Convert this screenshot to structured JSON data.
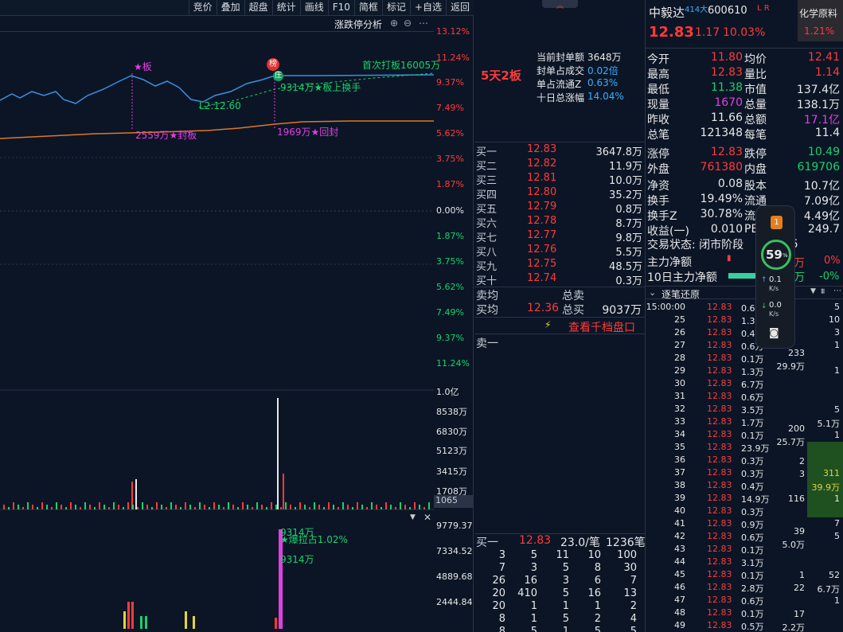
{
  "toolbar": {
    "btns": [
      "竞价",
      "叠加",
      "超盘",
      "统计",
      "画线",
      "F10",
      "简框",
      "标记",
      "+自选",
      "返回"
    ]
  },
  "chart": {
    "title": "涨跌停分析",
    "pct_labels": [
      "13.12%",
      "11.24%",
      "9.37%",
      "7.49%",
      "5.62%",
      "3.75%",
      "1.87%",
      "0.00%",
      "1.87%",
      "3.75%",
      "5.62%",
      "7.49%",
      "9.37%",
      "11.24%"
    ],
    "ann": {
      "ban": "★板",
      "first": "首次打板16005万",
      "seal": "9314万★板上换手",
      "l2": "L2:12.60",
      "fb": "2559万★封板",
      "hf": "1969万★回封",
      "bang": "榜",
      "jin": "庄"
    },
    "vol_labels": [
      "1.0亿",
      "8538万",
      "6830万",
      "5123万",
      "3415万",
      "1708万",
      "1065"
    ],
    "amt_labels": [
      "9779.37",
      "7334.52",
      "4889.68",
      "2444.84"
    ],
    "amt_ann": {
      "a": "9314万",
      "b": "★爆拉占1.02%",
      "c": "9314万"
    }
  },
  "mid": {
    "streak": "5天2板",
    "info": [
      [
        "当前封单额",
        "3648万"
      ],
      [
        "封单占成交",
        "0.02倍"
      ],
      [
        "单占流通Z",
        "0.63%"
      ],
      [
        "十日总涨幅",
        "14.04%"
      ]
    ],
    "bids": [
      [
        "买一",
        "12.83",
        "3647.8万"
      ],
      [
        "买二",
        "12.82",
        "11.9万"
      ],
      [
        "买三",
        "12.81",
        "10.0万"
      ],
      [
        "买四",
        "12.80",
        "35.2万"
      ],
      [
        "买五",
        "12.79",
        "0.8万"
      ],
      [
        "买六",
        "12.78",
        "8.7万"
      ],
      [
        "买七",
        "12.77",
        "9.8万"
      ],
      [
        "买八",
        "12.76",
        "5.5万"
      ],
      [
        "买九",
        "12.75",
        "48.5万"
      ],
      [
        "买十",
        "12.74",
        "0.3万"
      ]
    ],
    "avg": {
      "sell_l": "卖均",
      "sell_t": "总卖",
      "buy_l": "买均",
      "buy_p": "12.36",
      "buy_t": "总买",
      "buy_v": "9037万"
    },
    "qiandang": "查看千档盘口",
    "sell1": "卖一",
    "b1": {
      "l": "买一",
      "p": "12.83",
      "n": "23.0/笔",
      "c": "1236笔"
    },
    "grid": [
      [
        "3",
        "5",
        "11",
        "10",
        "100"
      ],
      [
        "7",
        "3",
        "5",
        "8",
        "30"
      ],
      [
        "26",
        "16",
        "3",
        "6",
        "7"
      ],
      [
        "20",
        "410",
        "5",
        "16",
        "13"
      ],
      [
        "20",
        "1",
        "1",
        "1",
        "2"
      ],
      [
        "8",
        "1",
        "5",
        "2",
        "4"
      ],
      [
        "8",
        "5",
        "1",
        "5",
        "5"
      ]
    ]
  },
  "right": {
    "name": "中毅达",
    "sup": "414大",
    "code": "600610",
    "lr": "L R",
    "tag": "化学原料",
    "tag_pct": "1.21%",
    "price": "12.83",
    "chg": "1.17",
    "pct": "10.03%",
    "rows": [
      [
        "今开",
        "11.80",
        "均价",
        "12.41"
      ],
      [
        "最高",
        "12.83",
        "量比",
        "1.14"
      ],
      [
        "最低",
        "11.38",
        "市值",
        "137.4亿"
      ],
      [
        "现量",
        "1670",
        "总量",
        "138.1万"
      ],
      [
        "昨收",
        "11.66",
        "总额",
        "17.1亿"
      ],
      [
        "总笔",
        "121348",
        "每笔",
        "11.4"
      ],
      [
        "涨停",
        "12.83",
        "跌停",
        "10.49"
      ],
      [
        "外盘",
        "761380",
        "内盘",
        "619706"
      ],
      [
        "净资",
        "0.08",
        "股本",
        "10.7亿"
      ],
      [
        "换手",
        "19.49%",
        "流通",
        "7.09亿"
      ],
      [
        "换手Z",
        "30.78%",
        "流通Z",
        "4.49亿"
      ],
      [
        "收益(一)",
        "0.010",
        "PE",
        "249.7"
      ]
    ],
    "state": "交易状态: 闭市阶段",
    "state2": "05",
    "main_in": "主力净额",
    "main_pct": "0%",
    "ten_in": "10日主力净额",
    "ten_pct": "-0%",
    "main_v": "万",
    "ten_v": "万",
    "trades_title": "逐笔还原",
    "trades": [
      [
        "15:00:00",
        "12.83",
        "0.6万"
      ],
      [
        "25",
        "12.83",
        "1.3万"
      ],
      [
        "26",
        "12.83",
        "0.4万"
      ],
      [
        "27",
        "12.83",
        "0.6万"
      ],
      [
        "28",
        "12.83",
        "0.1万"
      ],
      [
        "29",
        "12.83",
        "1.3万"
      ],
      [
        "30",
        "12.83",
        "6.7万"
      ],
      [
        "31",
        "12.83",
        "0.6万"
      ],
      [
        "32",
        "12.83",
        "3.5万"
      ],
      [
        "33",
        "12.83",
        "1.7万"
      ],
      [
        "34",
        "12.83",
        "0.1万"
      ],
      [
        "35",
        "12.83",
        "23.9万"
      ],
      [
        "36",
        "12.83",
        "0.3万"
      ],
      [
        "37",
        "12.83",
        "0.3万"
      ],
      [
        "38",
        "12.83",
        "0.4万"
      ],
      [
        "39",
        "12.83",
        "14.9万"
      ],
      [
        "40",
        "12.83",
        "0.3万"
      ],
      [
        "41",
        "12.83",
        "0.9万"
      ],
      [
        "42",
        "12.83",
        "0.6万"
      ],
      [
        "43",
        "12.83",
        "0.1万"
      ],
      [
        "44",
        "12.83",
        "3.1万"
      ],
      [
        "45",
        "12.83",
        "0.1万"
      ],
      [
        "46",
        "12.83",
        "2.8万"
      ],
      [
        "47",
        "12.83",
        "0.6万"
      ],
      [
        "48",
        "12.83",
        "0.1万"
      ],
      [
        "49",
        "12.83",
        "0.5万"
      ]
    ],
    "col_a": [
      "233",
      "29.9万",
      "200",
      "25.7万",
      "2",
      "3",
      "116",
      "39",
      "5.0万",
      "1",
      "22",
      "17",
      "2.2万"
    ],
    "col_b": [
      "5",
      "10",
      "3",
      "1",
      "1",
      "5",
      "5.1万",
      "1",
      "311",
      "39.9万",
      "1",
      "7",
      "5",
      "52",
      "6.7万",
      "1"
    ],
    "overlay": {
      "pct": "59",
      "unit": "%",
      "up": "0.1",
      "up_u": "K/s",
      "dn": "0.0",
      "dn_u": "K/s"
    }
  }
}
